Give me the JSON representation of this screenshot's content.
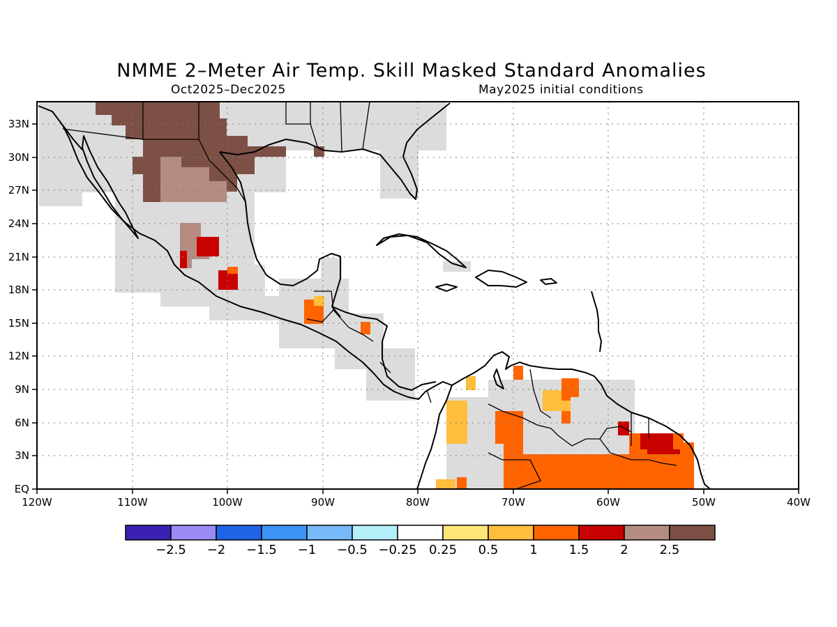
{
  "title": "NMME 2–Meter Air Temp. Skill Masked Standard Anomalies",
  "valid_period": "Oct2025–Dec2025",
  "initial_conditions": "May2025 initial conditions",
  "lon_labels": [
    "120W",
    "110W",
    "100W",
    "90W",
    "80W",
    "70W",
    "60W",
    "50W",
    "40W"
  ],
  "lat_labels": [
    "33N",
    "30N",
    "27N",
    "24N",
    "21N",
    "18N",
    "15N",
    "12N",
    "9N",
    "6N",
    "3N",
    "EQ"
  ],
  "colorbar": {
    "colors": [
      "#3c20b4",
      "#9b8cf5",
      "#1f64e6",
      "#3c94f5",
      "#78b9fa",
      "#b4f0fa",
      "#ffffff",
      "#ffe678",
      "#ffbe3c",
      "#ff6400",
      "#c80000",
      "#b48c82",
      "#7d5046"
    ],
    "labels": [
      "−2.5",
      "−2",
      "−1.5",
      "−1",
      "−0.5",
      "−0.25",
      "0.25",
      "0.5",
      "1",
      "1.5",
      "2",
      "2.5"
    ]
  },
  "map_colors": {
    "no_skill": "#dcdcdc",
    "c_05_1": "#ffbe3c",
    "c_1_15": "#ff6400",
    "c_15_2": "#c80000",
    "c_2_25": "#b48c82",
    "c_gt25": "#7d5046"
  }
}
